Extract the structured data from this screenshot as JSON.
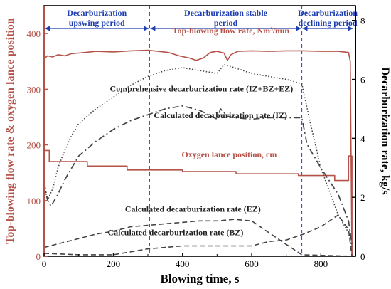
{
  "chart_data": {
    "type": "line",
    "xlabel": "Blowing time, s",
    "ylabel_left": "Top-blowing flow rate & oxygen lance position",
    "ylabel_right": "Decarburization rate, kg/s",
    "xlim": [
      0,
      900
    ],
    "ylim_left": [
      0,
      450
    ],
    "ylim_right": [
      0,
      8.5
    ],
    "x_ticks": [
      0,
      200,
      400,
      600,
      800
    ],
    "y_ticks_left": [
      0,
      100,
      200,
      300,
      400
    ],
    "y_ticks_right": [
      0,
      2,
      4,
      6,
      8
    ],
    "grid": false,
    "colors": {
      "flow": "#b5534a",
      "lance": "#b5534a",
      "rate": "#444444",
      "axis_left": "#b5534a",
      "axis_right": "#000000",
      "period_line": "#3355cc",
      "period_text": "#1f3fb0"
    },
    "periods": [
      {
        "label_lines": [
          "Decarburization",
          "upswing period"
        ],
        "range": [
          0,
          305
        ]
      },
      {
        "label_lines": [
          "Decarburization stable",
          "period"
        ],
        "range": [
          305,
          745
        ]
      },
      {
        "label_lines": [
          "Decarburization",
          "declining period"
        ],
        "range": [
          745,
          895
        ]
      }
    ],
    "series": [
      {
        "name": "Top-blowing flow rate, Nm³/min",
        "axis": "left",
        "style": "solid",
        "x": [
          0,
          10,
          25,
          40,
          60,
          80,
          100,
          150,
          200,
          250,
          300,
          330,
          360,
          390,
          420,
          440,
          460,
          480,
          500,
          520,
          530,
          540,
          560,
          600,
          650,
          700,
          750,
          800,
          850,
          880,
          885,
          890
        ],
        "y": [
          355,
          360,
          358,
          362,
          360,
          364,
          365,
          368,
          367,
          369,
          370,
          368,
          366,
          360,
          356,
          352,
          356,
          366,
          368,
          365,
          352,
          362,
          368,
          369,
          368,
          369,
          369,
          368,
          368,
          366,
          350,
          0
        ]
      },
      {
        "name": "Oxygen lance position, cm",
        "axis": "left",
        "style": "step",
        "x": [
          0,
          15,
          15,
          125,
          125,
          240,
          240,
          400,
          400,
          555,
          555,
          735,
          735,
          840,
          840,
          880,
          880,
          890,
          890
        ],
        "y": [
          190,
          190,
          170,
          170,
          162,
          162,
          155,
          155,
          152,
          152,
          148,
          148,
          145,
          145,
          136,
          136,
          180,
          180,
          0
        ]
      },
      {
        "name": "Comprehensive decarburization rate (IZ+BZ+EZ)",
        "axis": "right",
        "style": "dotted",
        "x": [
          0,
          10,
          25,
          40,
          60,
          80,
          100,
          150,
          200,
          250,
          300,
          350,
          400,
          450,
          500,
          520,
          550,
          600,
          650,
          700,
          745,
          770,
          800,
          850,
          880,
          890
        ],
        "y": [
          2.4,
          1.9,
          2.3,
          3.0,
          3.6,
          4.1,
          4.5,
          5.0,
          5.4,
          5.8,
          6.1,
          6.3,
          6.4,
          6.3,
          6.2,
          6.5,
          6.4,
          6.2,
          6.1,
          6.0,
          5.85,
          4.5,
          3.0,
          1.4,
          0.8,
          0.3
        ]
      },
      {
        "name": "Calculated decarburization rate (IZ)",
        "axis": "right",
        "style": "dashdot",
        "x": [
          0,
          10,
          20,
          40,
          60,
          80,
          100,
          150,
          200,
          250,
          300,
          350,
          400,
          450,
          500,
          510,
          530,
          550,
          600,
          650,
          700,
          745,
          760,
          800,
          850,
          880,
          890
        ],
        "y": [
          2.5,
          1.9,
          1.7,
          2.1,
          2.6,
          3.0,
          3.4,
          3.9,
          4.3,
          4.6,
          4.8,
          5.0,
          5.1,
          4.95,
          4.65,
          5.0,
          4.75,
          4.7,
          4.65,
          4.7,
          4.7,
          4.7,
          3.8,
          3.0,
          2.1,
          1.2,
          0.4
        ]
      },
      {
        "name": "Calculated decarburization rate (EZ)",
        "axis": "right",
        "style": "dashed",
        "x": [
          0,
          50,
          100,
          150,
          200,
          250,
          300,
          350,
          400,
          450,
          500,
          550,
          600,
          650,
          700,
          745,
          890
        ],
        "y": [
          0.3,
          0.45,
          0.6,
          0.75,
          0.85,
          1.0,
          1.05,
          1.1,
          1.15,
          1.2,
          1.2,
          1.25,
          1.2,
          0.8,
          0.4,
          0.05,
          0.0
        ]
      },
      {
        "name": "Calculated decarburization rate (BZ)",
        "axis": "right",
        "style": "dashed",
        "x": [
          0,
          100,
          200,
          250,
          300,
          350,
          400,
          500,
          600,
          650,
          700,
          750,
          800,
          850,
          880,
          890
        ],
        "y": [
          0.1,
          0.05,
          0.05,
          0.15,
          0.25,
          0.3,
          0.35,
          0.35,
          0.35,
          0.5,
          0.55,
          0.75,
          1.0,
          1.4,
          0.9,
          0.0
        ]
      }
    ],
    "annotations": [
      {
        "text": "Top-blowing flow rate, Nm³/min",
        "color": "#b5534a",
        "x": 540,
        "y_left": 400
      },
      {
        "text": "Comprehensive decarburization rate (IZ+BZ+EZ)",
        "color": "#222222",
        "x": 455,
        "y_left": 296
      },
      {
        "text": "Calculated decarburization rate (IZ)",
        "color": "#222222",
        "x": 510,
        "y_left": 248
      },
      {
        "text": "Oxygen lance position, cm",
        "color": "#b5534a",
        "x": 535,
        "y_left": 178
      },
      {
        "text": "Calculated decarburization rate (EZ)",
        "color": "#222222",
        "x": 430,
        "y_left": 80
      },
      {
        "text": "Calculated decarburization rate (BZ)",
        "color": "#222222",
        "x": 380,
        "y_left": 38
      }
    ]
  }
}
